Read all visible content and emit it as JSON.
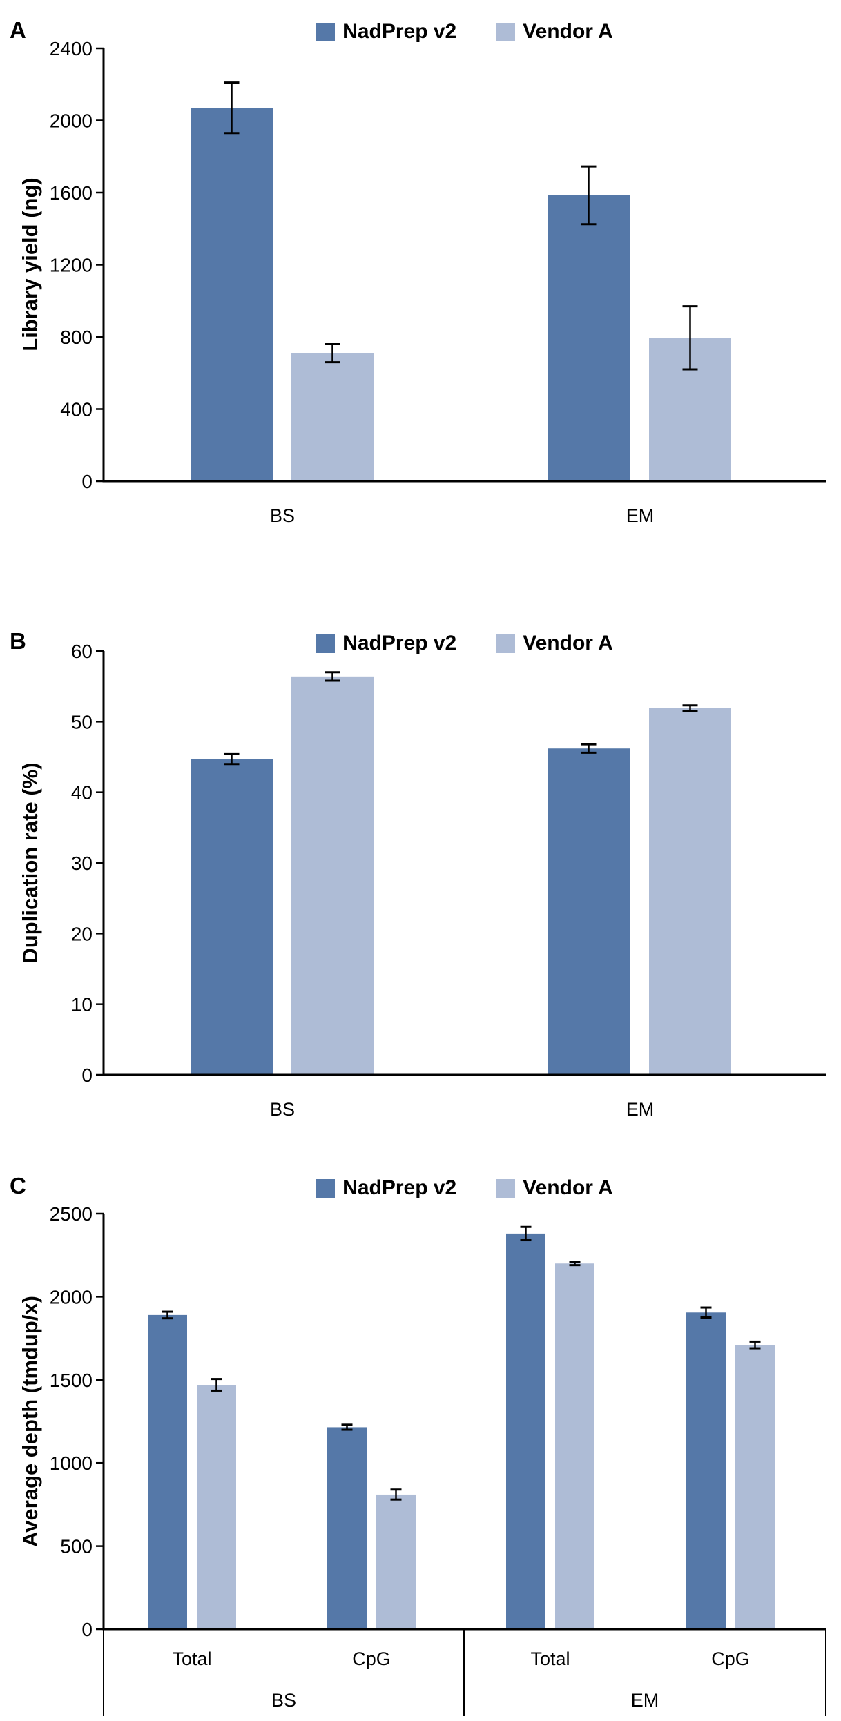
{
  "figure": {
    "series": [
      {
        "label": "NadPrep v2",
        "color": "#5578a8"
      },
      {
        "label": "Vendor A",
        "color": "#aebcd6"
      }
    ]
  },
  "chart_data": [
    {
      "type": "bar",
      "panel_label": "A",
      "ylabel": "Library yield (ng)",
      "categories": [
        "BS",
        "EM"
      ],
      "series": [
        {
          "name": "NadPrep v2",
          "values": [
            2070,
            1585
          ],
          "errors": [
            140,
            160
          ]
        },
        {
          "name": "Vendor A",
          "values": [
            710,
            795
          ],
          "errors": [
            50,
            175
          ]
        }
      ],
      "ylim": [
        0,
        2400
      ],
      "ytick_step": 400,
      "grid": false,
      "legend_position": "top-center"
    },
    {
      "type": "bar",
      "panel_label": "B",
      "ylabel": "Duplication rate (%)",
      "categories": [
        "BS",
        "EM"
      ],
      "series": [
        {
          "name": "NadPrep v2",
          "values": [
            44.7,
            46.2
          ],
          "errors": [
            0.7,
            0.6
          ]
        },
        {
          "name": "Vendor A",
          "values": [
            56.4,
            51.9
          ],
          "errors": [
            0.6,
            0.4
          ]
        }
      ],
      "ylim": [
        0,
        60
      ],
      "ytick_step": 10,
      "grid": false,
      "legend_position": "top-center"
    },
    {
      "type": "bar",
      "panel_label": "C",
      "ylabel": "Average depth (tmdup/x)",
      "group_labels": [
        "BS",
        "EM"
      ],
      "categories": [
        "Total",
        "CpG",
        "Total",
        "CpG"
      ],
      "series": [
        {
          "name": "NadPrep v2",
          "values": [
            1890,
            1215,
            2380,
            1905
          ],
          "errors": [
            20,
            15,
            40,
            30
          ]
        },
        {
          "name": "Vendor A",
          "values": [
            1470,
            810,
            2200,
            1710
          ],
          "errors": [
            35,
            30,
            10,
            20
          ]
        }
      ],
      "ylim": [
        0,
        2500
      ],
      "ytick_step": 500,
      "grid": false,
      "legend_position": "top-center"
    }
  ]
}
